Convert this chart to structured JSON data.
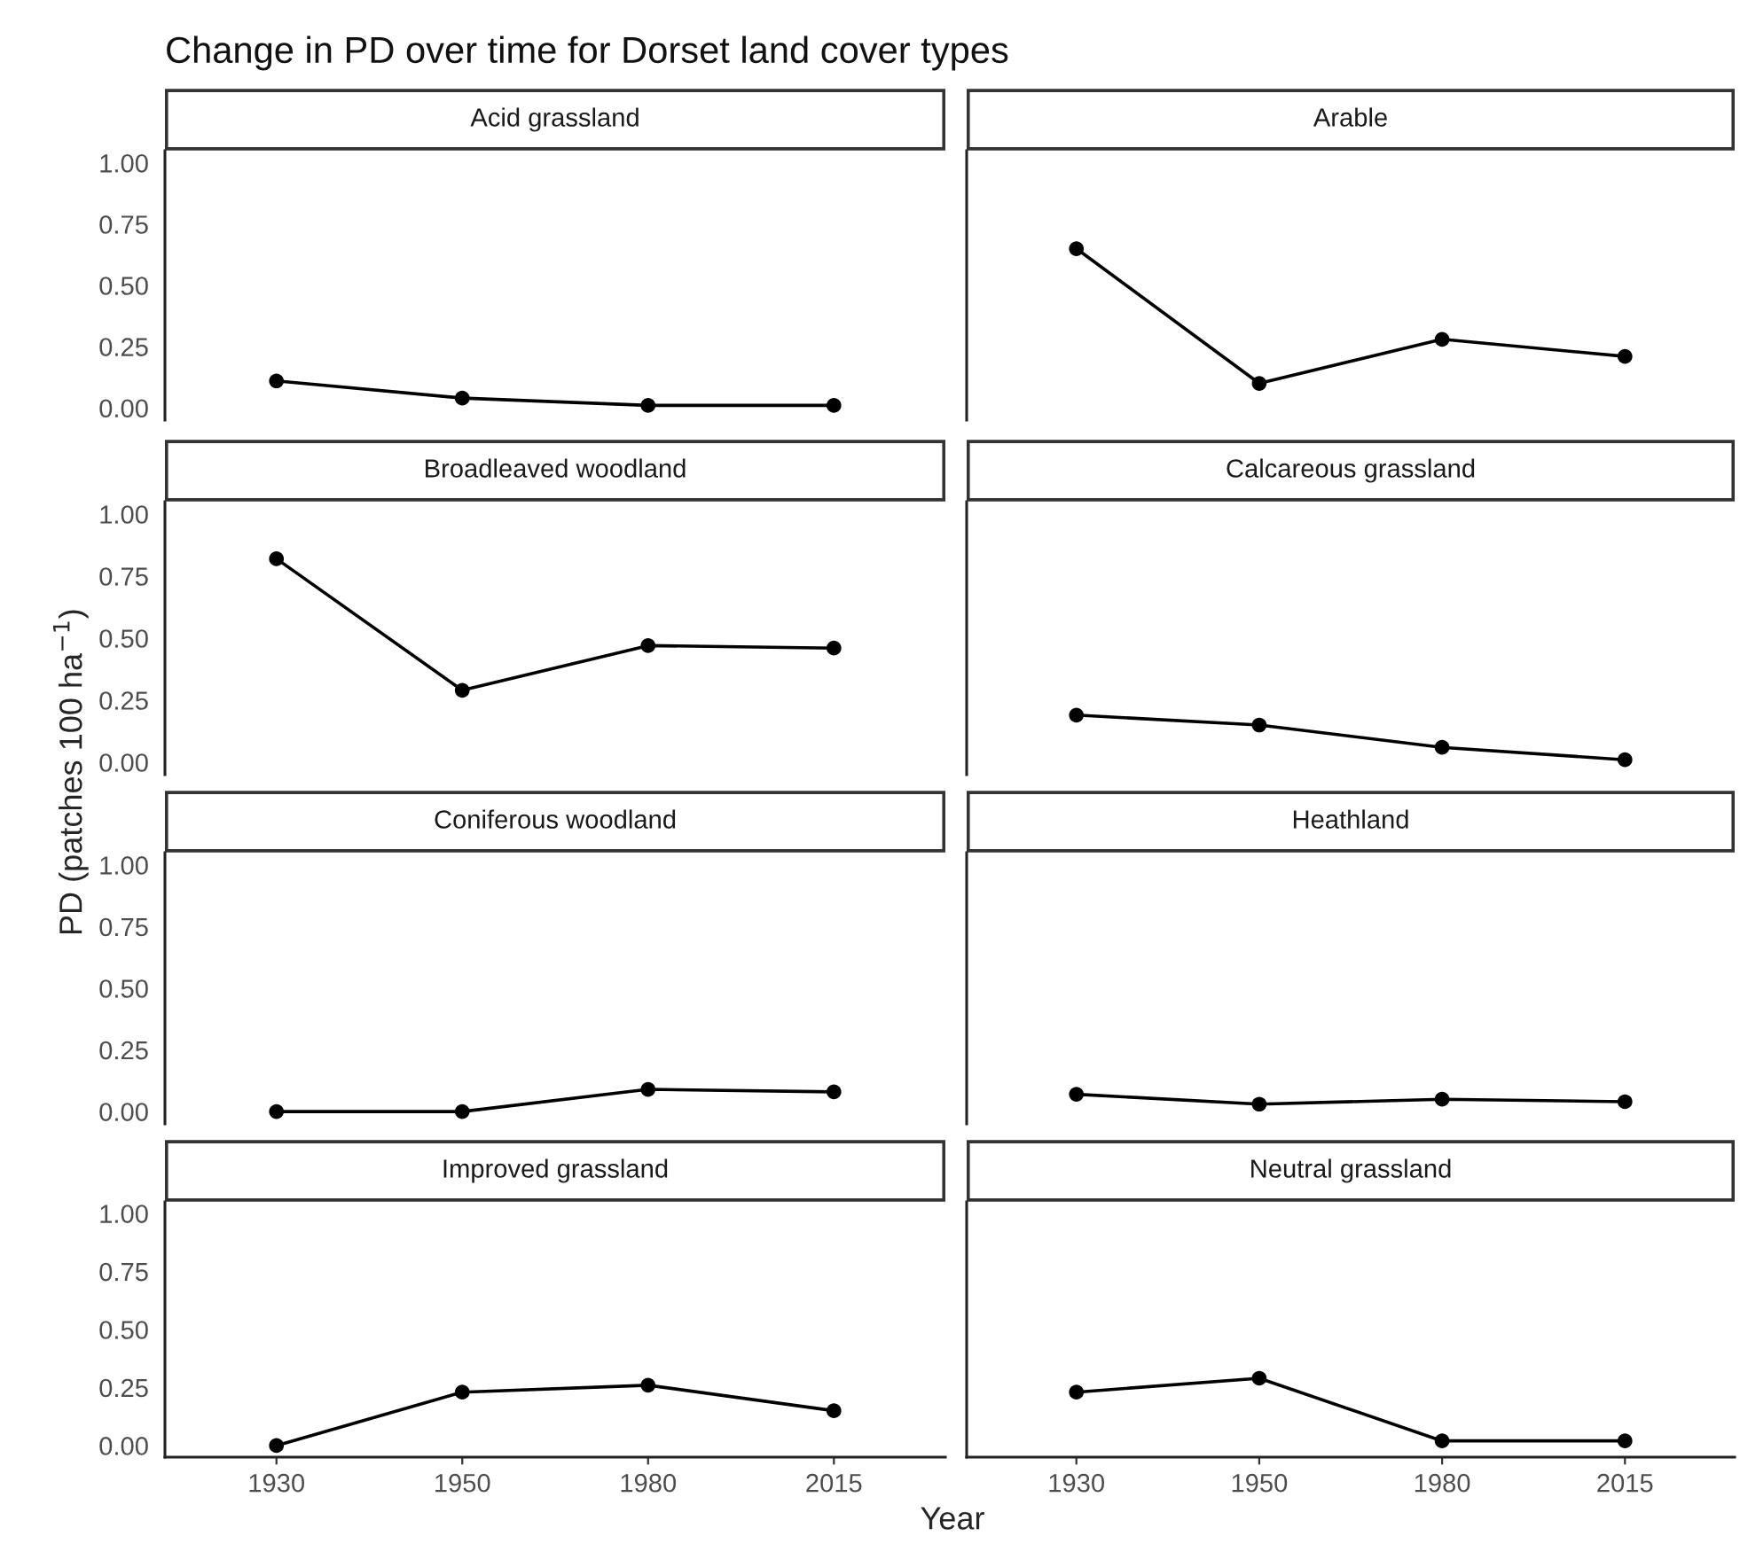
{
  "chart_data": [
    {
      "type": "line",
      "title": "Acid grassland",
      "annotations": [
        "Change in PD over time for Dorset land cover types"
      ],
      "ylabel": "PD (patches 100 ha$^{−1}$)",
      "categories": [
        "1930",
        "1950",
        "1980",
        "2015"
      ],
      "series": [
        {
          "color": "#000000",
          "values": [
            0.11,
            0.04,
            0.01,
            0.01
          ]
        }
      ],
      "ylim": [
        -0.05,
        1.05
      ],
      "yticks": [
        {
          "value": 0,
          "label": "0.00"
        },
        {
          "value": 0.25,
          "label": "0.25"
        },
        {
          "value": 0.5,
          "label": "0.50"
        },
        {
          "value": 0.75,
          "label": "0.75"
        },
        {
          "value": 1,
          "label": "1.00"
        }
      ],
      "tick_labels": "y",
      "marker": "circle",
      "line_style": "solid",
      "grid": false,
      "legend": false
    },
    {
      "type": "line",
      "title": "Arable",
      "categories": [
        "1930",
        "1950",
        "1980",
        "2015"
      ],
      "series": [
        {
          "color": "#000000",
          "values": [
            0.65,
            0.1,
            0.28,
            0.21
          ]
        }
      ],
      "ylim": [
        -0.05,
        1.05
      ],
      "yticks": [
        {
          "value": 0,
          "label": null
        },
        {
          "value": 0.25,
          "label": null
        },
        {
          "value": 0.5,
          "label": null
        },
        {
          "value": 0.75,
          "label": null
        },
        {
          "value": 1,
          "label": null
        }
      ],
      "tick_labels": false,
      "marker": "circle",
      "line_style": "solid",
      "grid": false,
      "legend": false
    },
    {
      "type": "line",
      "title": "Broadleaved woodland",
      "categories": [
        "1930",
        "1950",
        "1980",
        "2015"
      ],
      "series": [
        {
          "color": "#000000",
          "values": [
            0.82,
            0.29,
            0.47,
            0.46
          ]
        }
      ],
      "ylim": [
        -0.05,
        1.05
      ],
      "yticks": [
        {
          "value": 0,
          "label": "0.00"
        },
        {
          "value": 0.25,
          "label": "0.25"
        },
        {
          "value": 0.5,
          "label": "0.50"
        },
        {
          "value": 0.75,
          "label": "0.75"
        },
        {
          "value": 1,
          "label": "1.00"
        }
      ],
      "tick_labels": "y",
      "marker": "circle",
      "line_style": "solid",
      "grid": false,
      "legend": false
    },
    {
      "type": "line",
      "title": "Calcareous grassland",
      "categories": [
        "1930",
        "1950",
        "1980",
        "2015"
      ],
      "series": [
        {
          "color": "#000000",
          "values": [
            0.19,
            0.15,
            0.06,
            0.01
          ]
        }
      ],
      "ylim": [
        -0.05,
        1.05
      ],
      "yticks": [
        {
          "value": 0,
          "label": null
        },
        {
          "value": 0.25,
          "label": null
        },
        {
          "value": 0.5,
          "label": null
        },
        {
          "value": 0.75,
          "label": null
        },
        {
          "value": 1,
          "label": null
        }
      ],
      "tick_labels": false,
      "marker": "circle",
      "line_style": "solid",
      "grid": false,
      "legend": false
    },
    {
      "type": "line",
      "title": "Coniferous woodland",
      "categories": [
        "1930",
        "1950",
        "1980",
        "2015"
      ],
      "series": [
        {
          "color": "#000000",
          "values": [
            0.0,
            0.0,
            0.09,
            0.08
          ]
        }
      ],
      "ylim": [
        -0.05,
        1.05
      ],
      "yticks": [
        {
          "value": 0,
          "label": "0.00"
        },
        {
          "value": 0.25,
          "label": "0.25"
        },
        {
          "value": 0.5,
          "label": "0.50"
        },
        {
          "value": 0.75,
          "label": "0.75"
        },
        {
          "value": 1,
          "label": "1.00"
        }
      ],
      "tick_labels": "y",
      "marker": "circle",
      "line_style": "solid",
      "grid": false,
      "legend": false
    },
    {
      "type": "line",
      "title": "Heathland",
      "categories": [
        "1930",
        "1950",
        "1980",
        "2015"
      ],
      "series": [
        {
          "color": "#000000",
          "values": [
            0.07,
            0.03,
            0.05,
            0.04
          ]
        }
      ],
      "ylim": [
        -0.05,
        1.05
      ],
      "yticks": [
        {
          "value": 0,
          "label": null
        },
        {
          "value": 0.25,
          "label": null
        },
        {
          "value": 0.5,
          "label": null
        },
        {
          "value": 0.75,
          "label": null
        },
        {
          "value": 1,
          "label": null
        }
      ],
      "tick_labels": false,
      "marker": "circle",
      "line_style": "solid",
      "grid": false,
      "legend": false
    },
    {
      "type": "line",
      "title": "Improved grassland",
      "xlabel": "Year",
      "categories": [
        "1930",
        "1950",
        "1980",
        "2015"
      ],
      "series": [
        {
          "color": "#000000",
          "values": [
            0.0,
            0.23,
            0.26,
            0.15
          ]
        }
      ],
      "ylim": [
        -0.05,
        1.05
      ],
      "yticks": [
        {
          "value": 0,
          "label": "0.00"
        },
        {
          "value": 0.25,
          "label": "0.25"
        },
        {
          "value": 0.5,
          "label": "0.50"
        },
        {
          "value": 0.75,
          "label": "0.75"
        },
        {
          "value": 1,
          "label": "1.00"
        }
      ],
      "marker": "circle",
      "line_style": "solid",
      "grid": false,
      "legend": false
    },
    {
      "type": "line",
      "title": "Neutral grassland",
      "categories": [
        "1930",
        "1950",
        "1980",
        "2015"
      ],
      "series": [
        {
          "color": "#000000",
          "values": [
            0.23,
            0.29,
            0.02,
            0.02
          ]
        }
      ],
      "ylim": [
        -0.05,
        1.05
      ],
      "yticks": [
        {
          "value": 0,
          "label": null
        },
        {
          "value": 0.25,
          "label": null
        },
        {
          "value": 0.5,
          "label": null
        },
        {
          "value": 0.75,
          "label": null
        },
        {
          "value": 1,
          "label": null
        }
      ],
      "tick_labels": "x",
      "marker": "circle",
      "line_style": "solid",
      "grid": false,
      "legend": false
    }
  ]
}
